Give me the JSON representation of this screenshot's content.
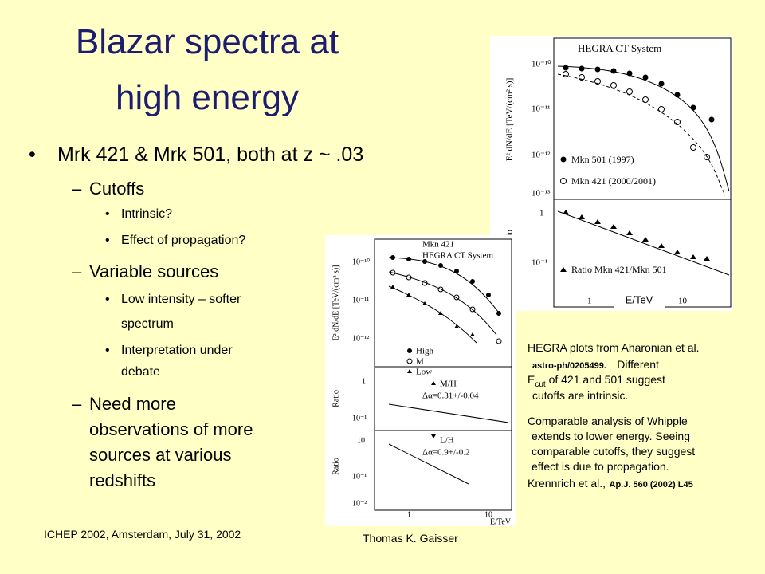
{
  "slide": {
    "title_lines": [
      "Blazar spectra at",
      "high energy"
    ],
    "bullet": "Mrk 421 & Mrk 501, both at z ~ .03",
    "sub_items": [
      {
        "text": "Cutoffs",
        "items": [
          [
            "Intrinsic?"
          ],
          [
            "Effect of propagation?"
          ]
        ]
      },
      {
        "text": "Variable sources",
        "items": [
          [
            "Low intensity – softer",
            "spectrum"
          ],
          [
            "Interpretation under",
            "debate"
          ]
        ]
      },
      {
        "lines": [
          "Need more",
          "observations of more",
          "sources at various",
          "redshifts"
        ]
      }
    ],
    "caption": {
      "line1": "HEGRA plots from Aharonian et al.",
      "ref1": "astro-ph/0205499.",
      "line2_rest": "Different",
      "e": "E",
      "sub": "cut",
      "line3_rest": "of 421 and 501 suggest",
      "line4": "cutoffs are intrinsic.",
      "para2": [
        "Comparable analysis of Whipple",
        "extends to lower energy.  Seeing",
        "comparable cutoffs, they suggest",
        "effect is due to propagation."
      ],
      "author": "Krennrich et al.,",
      "ref2": "Ap.J. 560 (2002) L45"
    },
    "footer": {
      "left": "ICHEP 2002, Amsterdam, July 31, 2002",
      "center": "Thomas K. Gaisser"
    }
  },
  "figure1": {
    "title": "HEGRA CT System",
    "ylabel": "E² dN/dE [TeV/(cm² s)]",
    "yticks": [
      "10⁻¹⁰",
      "10⁻¹¹",
      "10⁻¹²",
      "10⁻¹³"
    ],
    "legend": [
      "Mkn 501 (1997)",
      "Mkn 421 (2000/2001)"
    ],
    "ratio_label": "Ratio",
    "ratio_ticks": [
      "1",
      "10⁻¹"
    ],
    "ratio_legend": "Ratio Mkn 421/Mkn 501",
    "xticks": [
      "1",
      "10"
    ],
    "xlabel": "E/TeV"
  },
  "figure2": {
    "title_lines": [
      "Mkn 421",
      "HEGRA CT System"
    ],
    "ylabel": "E² dN/dE [TeV/(cm² s)]",
    "yticks": [
      "10⁻¹⁰",
      "10⁻¹¹",
      "10⁻¹²"
    ],
    "legend": [
      "High",
      "M",
      "Low"
    ],
    "ratio_label": "Ratio",
    "ratio1_ticks": [
      "1",
      "10⁻¹"
    ],
    "ratio1_legend": [
      "M/H",
      "Δα=0.31+/-0.04"
    ],
    "ratio2_ticks": [
      "10",
      "10⁻¹",
      "10⁻²"
    ],
    "ratio2_legend": [
      "L/H",
      "Δα=0.9+/-0.2"
    ],
    "xticks": [
      "1",
      "10"
    ],
    "xlabel": "E/TeV"
  }
}
